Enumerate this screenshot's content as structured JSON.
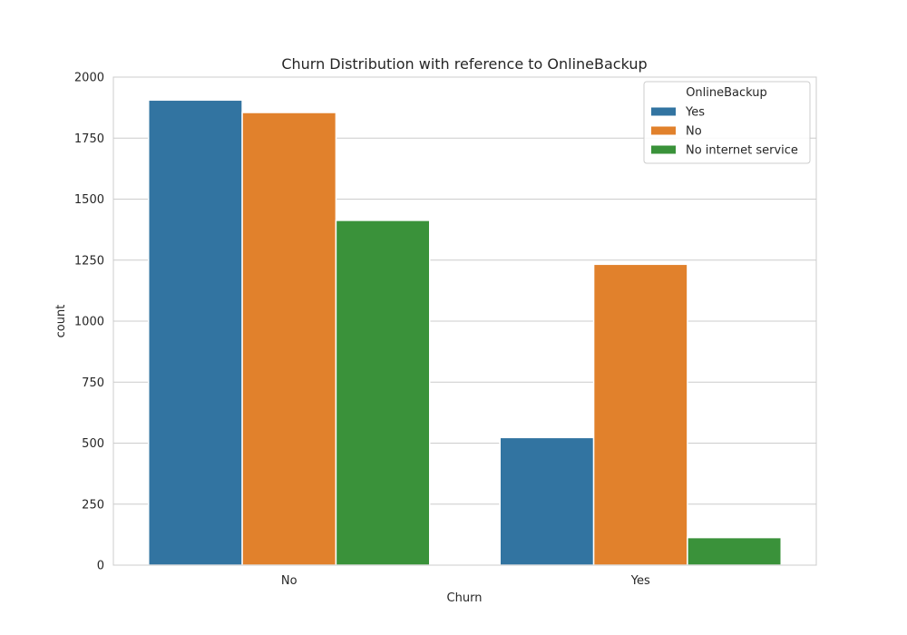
{
  "chart_data": {
    "type": "bar",
    "title": "Churn Distribution with reference to OnlineBackup",
    "xlabel": "Churn",
    "ylabel": "count",
    "categories": [
      "No",
      "Yes"
    ],
    "series": [
      {
        "name": "Yes",
        "color": "#3274a1",
        "values": [
          1906,
          523
        ]
      },
      {
        "name": "No",
        "color": "#e1812c",
        "values": [
          1855,
          1233
        ]
      },
      {
        "name": "No internet service",
        "color": "#3a923a",
        "values": [
          1413,
          113
        ]
      }
    ],
    "ylim": [
      0,
      2000
    ],
    "yticks": [
      0,
      250,
      500,
      750,
      1000,
      1250,
      1500,
      1750,
      2000
    ],
    "grid": true,
    "legend": {
      "title": "OnlineBackup",
      "placement": "top-right"
    }
  }
}
